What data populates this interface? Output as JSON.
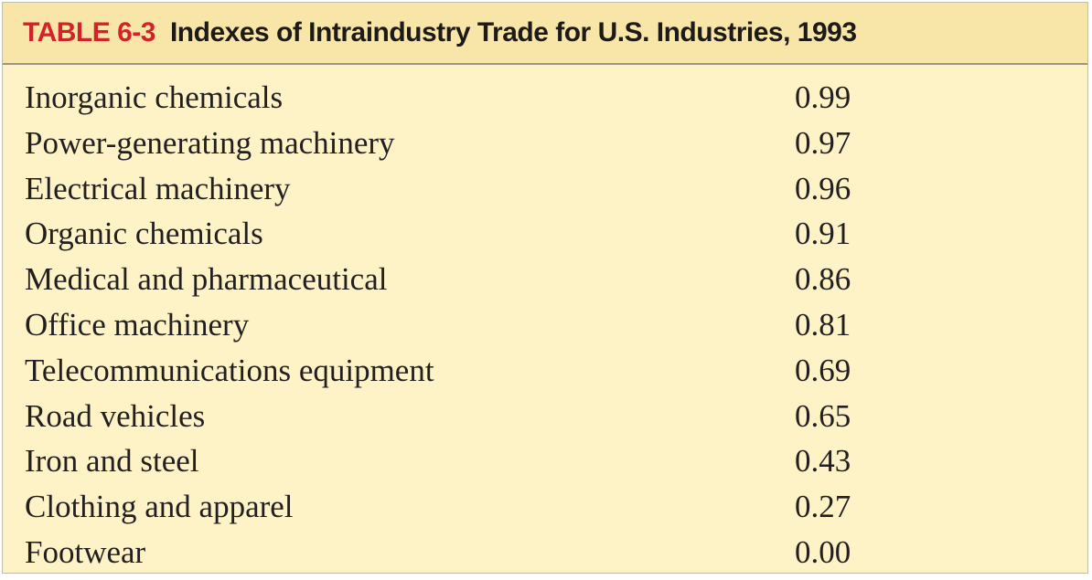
{
  "table": {
    "number": "TABLE 6-3",
    "title": "Indexes of Intraindustry Trade for U.S. Industries, 1993",
    "rows": [
      {
        "industry": "Inorganic chemicals",
        "value": "0.99"
      },
      {
        "industry": "Power-generating machinery",
        "value": "0.97"
      },
      {
        "industry": "Electrical machinery",
        "value": "0.96"
      },
      {
        "industry": "Organic chemicals",
        "value": "0.91"
      },
      {
        "industry": "Medical and pharmaceutical",
        "value": "0.86"
      },
      {
        "industry": "Office machinery",
        "value": "0.81"
      },
      {
        "industry": "Telecommunications equipment",
        "value": "0.69"
      },
      {
        "industry": "Road vehicles",
        "value": "0.65"
      },
      {
        "industry": "Iron and steel",
        "value": "0.43"
      },
      {
        "industry": "Clothing and apparel",
        "value": "0.27"
      },
      {
        "industry": "Footwear",
        "value": "0.00"
      }
    ]
  },
  "colors": {
    "table_number": "#d2232a",
    "title_band": "#f8e6a8",
    "body_background": "#fdf3c6",
    "text": "#231f20"
  }
}
